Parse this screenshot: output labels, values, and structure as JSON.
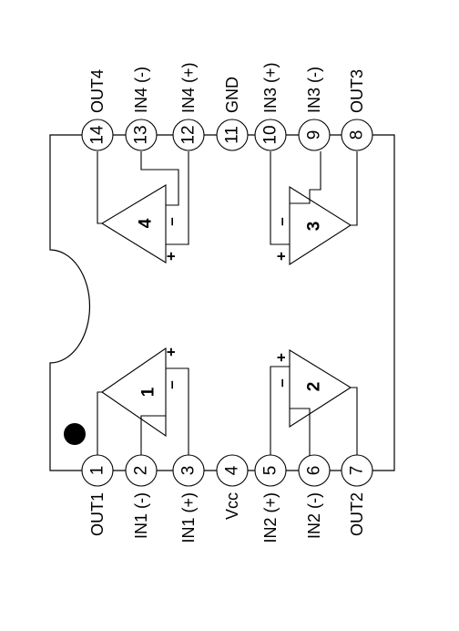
{
  "pins": [
    {
      "number": "1",
      "label": "OUT1"
    },
    {
      "number": "2",
      "label": "IN1 (-)"
    },
    {
      "number": "3",
      "label": "IN1 (+)"
    },
    {
      "number": "4",
      "label": "Vcc"
    },
    {
      "number": "5",
      "label": "IN2 (+)"
    },
    {
      "number": "6",
      "label": "IN2 (-)"
    },
    {
      "number": "7",
      "label": "OUT2"
    },
    {
      "number": "8",
      "label": "OUT3"
    },
    {
      "number": "9",
      "label": "IN3 (-)"
    },
    {
      "number": "10",
      "label": "IN3 (+)"
    },
    {
      "number": "11",
      "label": "GND"
    },
    {
      "number": "12",
      "label": "IN4 (+)"
    },
    {
      "number": "13",
      "label": "IN4 (-)"
    },
    {
      "number": "14",
      "label": "OUT4"
    }
  ],
  "amplifiers": [
    {
      "number": "1",
      "plus": "+",
      "minus": "–"
    },
    {
      "number": "2",
      "plus": "+",
      "minus": "–"
    },
    {
      "number": "3",
      "plus": "+",
      "minus": "–"
    },
    {
      "number": "4",
      "plus": "+",
      "minus": "–"
    }
  ]
}
